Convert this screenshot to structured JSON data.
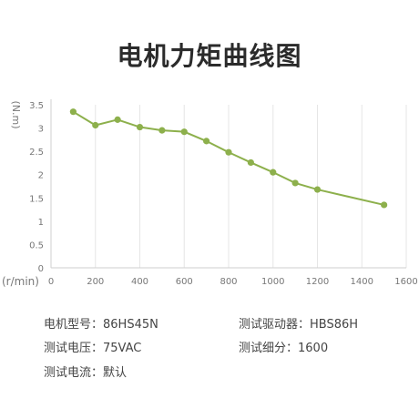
{
  "title": "电机力矩曲线图",
  "chart_data": {
    "type": "line",
    "title": "电机力矩曲线图",
    "ylabel": "(N.m)",
    "xlabel": "(r/min)",
    "xlim": [
      0,
      1600
    ],
    "ylim": [
      0,
      3.5
    ],
    "x_ticks": [
      "0",
      "200",
      "400",
      "600",
      "800",
      "1000",
      "1200",
      "1400",
      "1600"
    ],
    "y_ticks": [
      "0",
      "0.5",
      "1",
      "1.5",
      "2",
      "2.5",
      "3",
      "3.5"
    ],
    "grid": "vertical",
    "color": "#8db04c",
    "series": [
      {
        "x": [
          100,
          200,
          300,
          400,
          500,
          600,
          700,
          800,
          900,
          1000,
          1100,
          1200,
          1500
        ],
        "y": [
          3.35,
          3.06,
          3.18,
          3.02,
          2.95,
          2.92,
          2.72,
          2.48,
          2.26,
          2.05,
          1.82,
          1.68,
          1.35
        ]
      }
    ]
  },
  "info": [
    {
      "label": "电机型号：",
      "value": "86HS45N"
    },
    {
      "label": "测试驱动器：",
      "value": "HBS86H"
    },
    {
      "label": "测试电压：",
      "value": "75VAC"
    },
    {
      "label": "测试细分：",
      "value": "1600"
    },
    {
      "label": "测试电流：",
      "value": "默认"
    }
  ]
}
